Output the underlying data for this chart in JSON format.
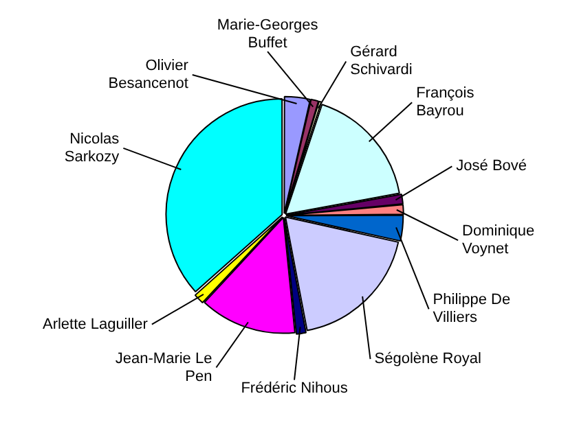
{
  "chart_data": {
    "type": "pie",
    "categories": [
      "Olivier Besancenot",
      "Marie-Georges Buffet",
      "Gérard Schivardi",
      "François Bayrou",
      "José Bové",
      "Dominique Voynet",
      "Philippe De Villiers",
      "Ségolène Royal",
      "Frédéric Nihous",
      "Jean-Marie Le Pen",
      "Arlette Laguiller",
      "Nicolas Sarkozy"
    ],
    "values": [
      3.6,
      1.1,
      0.4,
      17,
      1.4,
      1.4,
      3.6,
      18.5,
      1.4,
      13.5,
      1.5,
      36.6
    ],
    "colors": [
      "#9999ff",
      "#993366",
      "#ffffcc",
      "#ccffff",
      "#660066",
      "#ff8080",
      "#0066cc",
      "#ccccff",
      "#000080",
      "#ff00ff",
      "#ffff00",
      "#00ffff"
    ]
  }
}
